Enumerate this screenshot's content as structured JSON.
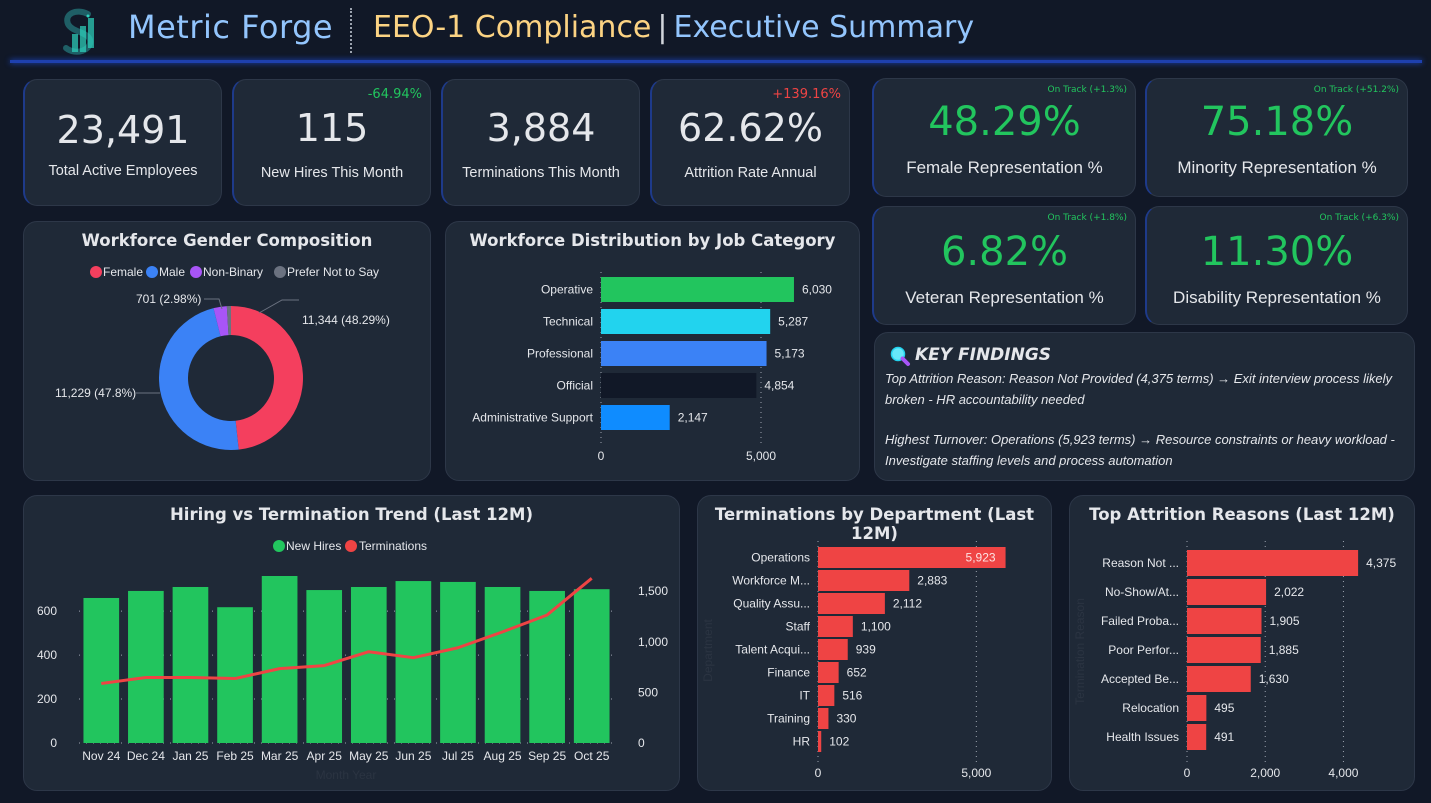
{
  "header": {
    "brand": "Metric Forge",
    "title_part1": "EEO-1 Compliance",
    "title_separator": "|",
    "title_part2": "Executive Summary",
    "logo_icon": "chart-snake-logo"
  },
  "kpis": [
    {
      "value": "23,491",
      "label": "Total Active Employees",
      "delta": ""
    },
    {
      "value": "115",
      "label": "New Hires This Month",
      "delta": "-64.94%",
      "delta_color": "#22c55e"
    },
    {
      "value": "3,884",
      "label": "Terminations This Month",
      "delta": ""
    },
    {
      "value": "62.62%",
      "label": "Attrition Rate Annual",
      "delta": "+139.16%",
      "delta_color": "#ef4444"
    }
  ],
  "representation": [
    {
      "value": "48.29%",
      "label": "Female Representation %",
      "status": "On Track (+1.3%)"
    },
    {
      "value": "75.18%",
      "label": "Minority Representation %",
      "status": "On Track (+51.2%)"
    },
    {
      "value": "6.82%",
      "label": "Veteran Representation %",
      "status": "On Track (+1.8%)"
    },
    {
      "value": "11.30%",
      "label": "Disability Representation %",
      "status": "On Track (+6.3%)"
    }
  ],
  "key_findings": {
    "title": "KEY FINDINGS",
    "icon": "magnifier-icon",
    "items": [
      "Top Attrition Reason: Reason Not Provided (4,375 terms) → Exit interview process likely broken - HR accountability needed",
      "Highest Turnover: Operations (5,923 terms) → Resource constraints or heavy workload - Investigate staffing levels and process automation"
    ]
  },
  "colors": {
    "female": "#f43f5e",
    "male": "#3b82f6",
    "non_binary": "#a855f7",
    "prefer_not": "#6b7280",
    "hires": "#22c55e",
    "terminations": "#ef4444"
  },
  "chart_data": [
    {
      "id": "gender",
      "type": "pie",
      "title": "Workforce Gender Composition",
      "legend": [
        "Female",
        "Male",
        "Non-Binary",
        "Prefer Not to Say"
      ],
      "legend_position": "top-center",
      "categories": [
        "Female",
        "Male",
        "Non-Binary",
        "Prefer Not to Say"
      ],
      "values": [
        11344,
        11229,
        701,
        217
      ],
      "colors": [
        "#f43f5e",
        "#3b82f6",
        "#a855f7",
        "#6b7280"
      ],
      "data_labels": [
        "11,344 (48.29%)",
        "11,229 (47.8%)",
        "701 (2.98%)",
        ""
      ],
      "donut": true
    },
    {
      "id": "jobcat",
      "type": "bar",
      "orientation": "horizontal",
      "title": "Workforce Distribution by Job Category",
      "categories": [
        "Operative",
        "Technical",
        "Professional",
        "Official",
        "Administrative Support"
      ],
      "values": [
        6030,
        5287,
        5173,
        4854,
        2147
      ],
      "data_labels": [
        "6,030",
        "5,287",
        "5,173",
        "4,854",
        "2,147"
      ],
      "colors": [
        "#22c55e",
        "#22d3ee",
        "#3b82f6",
        "#111827",
        "#0f8cff"
      ],
      "xlim": [
        0,
        6400
      ],
      "xticks": [
        0,
        5000
      ],
      "xtick_labels": [
        "0",
        "5,000"
      ],
      "grid": true
    },
    {
      "id": "trend",
      "type": "bar+line",
      "title": "Hiring vs Termination Trend (Last 12M)",
      "legend": [
        "New Hires",
        "Terminations"
      ],
      "legend_position": "top-center",
      "xlabel": "Month Year",
      "categories": [
        "Nov 24",
        "Dec 24",
        "Jan 25",
        "Feb 25",
        "Mar 25",
        "Apr 25",
        "May 25",
        "Jun 25",
        "Jul 25",
        "Aug 25",
        "Sep 25",
        "Oct 25"
      ],
      "series": [
        {
          "name": "New Hires",
          "type": "bar",
          "axis": "left",
          "values": [
            660,
            692,
            710,
            618,
            760,
            696,
            710,
            737,
            733,
            710,
            692,
            700
          ]
        },
        {
          "name": "Terminations",
          "type": "line",
          "axis": "right",
          "values": [
            588,
            647,
            647,
            637,
            735,
            765,
            902,
            843,
            941,
            1098,
            1265,
            1627
          ]
        }
      ],
      "ylim_left": [
        0,
        760
      ],
      "yticks_left": [
        0,
        200,
        400,
        600
      ],
      "ylim_right": [
        0,
        1650
      ],
      "yticks_right": [
        0,
        500,
        1000,
        1500
      ],
      "ytick_labels_right": [
        "0",
        "500",
        "1,000",
        "1,500"
      ],
      "grid": true
    },
    {
      "id": "dept",
      "type": "bar",
      "orientation": "horizontal",
      "title": "Terminations by Department (Last 12M)",
      "ylabel": "Department",
      "categories": [
        "Operations",
        "Workforce M...",
        "Quality Assu...",
        "Staff",
        "Talent Acqui...",
        "Finance",
        "IT",
        "Training",
        "HR"
      ],
      "values": [
        5923,
        2883,
        2112,
        1100,
        939,
        652,
        516,
        330,
        102
      ],
      "data_labels": [
        "5,923",
        "2,883",
        "2,112",
        "1,100",
        "939",
        "652",
        "516",
        "330",
        "102"
      ],
      "xlim": [
        0,
        6000
      ],
      "xticks": [
        0,
        5000
      ],
      "xtick_labels": [
        "0",
        "5,000"
      ],
      "color": "#ef4444",
      "grid": true
    },
    {
      "id": "reasons",
      "type": "bar",
      "orientation": "horizontal",
      "title": "Top Attrition Reasons (Last 12M)",
      "ylabel": "Termination Reason",
      "categories": [
        "Reason Not ...",
        "No-Show/At...",
        "Failed Proba...",
        "Poor Perfor...",
        "Accepted Be...",
        "Relocation",
        "Health Issues"
      ],
      "values": [
        4375,
        2022,
        1905,
        1885,
        1630,
        495,
        491
      ],
      "data_labels": [
        "4,375",
        "2,022",
        "1,905",
        "1,885",
        "1,630",
        "495",
        "491"
      ],
      "xlim": [
        0,
        4500
      ],
      "xticks": [
        0,
        2000,
        4000
      ],
      "xtick_labels": [
        "0",
        "2,000",
        "4,000"
      ],
      "color": "#ef4444",
      "grid": true
    }
  ]
}
